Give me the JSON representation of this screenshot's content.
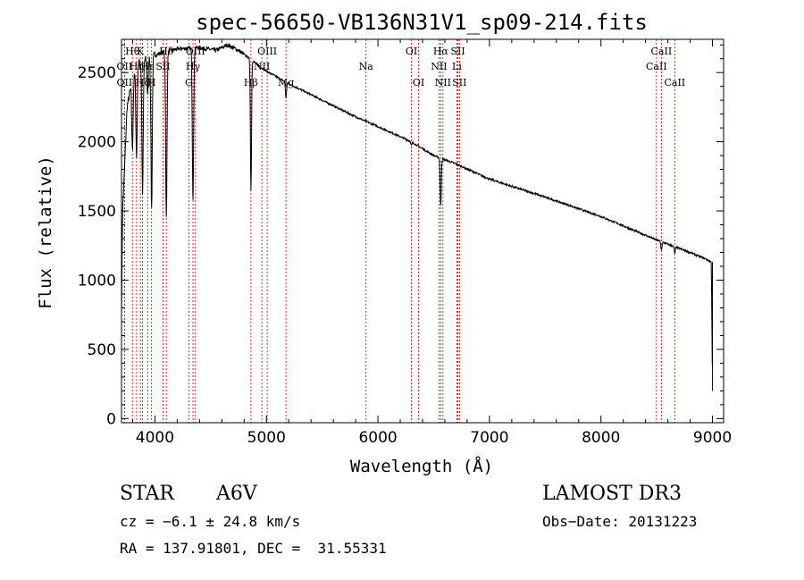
{
  "chart_data": {
    "type": "line",
    "title": "spec-56650-VB136N31V1_sp09-214.fits",
    "xlabel": "Wavelength (Å)",
    "ylabel": "Flux (relative)",
    "xlim": [
      3700,
      9100
    ],
    "ylim": [
      -30,
      2740
    ],
    "xticks": [
      4000,
      5000,
      6000,
      7000,
      8000,
      9000
    ],
    "yticks": [
      0,
      500,
      1000,
      1500,
      2000,
      2500
    ],
    "xtick_labels": [
      "4000",
      "5000",
      "6000",
      "7000",
      "8000",
      "9000"
    ],
    "ytick_labels": [
      "0",
      "500",
      "1000",
      "1500",
      "2000",
      "2500"
    ],
    "series": [
      {
        "name": "flux",
        "continuum_points": [
          [
            3700,
            750
          ],
          [
            3710,
            1500
          ],
          [
            3730,
            1850
          ],
          [
            3750,
            2250
          ],
          [
            3790,
            2420
          ],
          [
            3850,
            2570
          ],
          [
            3950,
            2610
          ],
          [
            4050,
            2640
          ],
          [
            4200,
            2670
          ],
          [
            4400,
            2680
          ],
          [
            4550,
            2660
          ],
          [
            4650,
            2700
          ],
          [
            4750,
            2660
          ],
          [
            4850,
            2600
          ],
          [
            5000,
            2510
          ],
          [
            5200,
            2420
          ],
          [
            5500,
            2300
          ],
          [
            5800,
            2180
          ],
          [
            6000,
            2110
          ],
          [
            6300,
            2000
          ],
          [
            6500,
            1900
          ],
          [
            6700,
            1840
          ],
          [
            7000,
            1730
          ],
          [
            7500,
            1600
          ],
          [
            8000,
            1460
          ],
          [
            8500,
            1290
          ],
          [
            8800,
            1200
          ],
          [
            8950,
            1150
          ],
          [
            8990,
            1130
          ],
          [
            9000,
            200
          ]
        ],
        "absorption_lines": [
          [
            3798,
            500
          ],
          [
            3835,
            650
          ],
          [
            3889,
            950
          ],
          [
            3934,
            250
          ],
          [
            3970,
            1100
          ],
          [
            4102,
            1200
          ],
          [
            4341,
            1100
          ],
          [
            4861,
            950
          ],
          [
            5175,
            120
          ],
          [
            6300,
            30
          ],
          [
            6563,
            350
          ],
          [
            8542,
            60
          ],
          [
            8662,
            50
          ]
        ]
      }
    ],
    "line_markers": [
      {
        "wavelength": 3727,
        "label": "OII",
        "row": 1
      },
      {
        "wavelength": 3727,
        "label": "OII",
        "row": 2
      },
      {
        "wavelength": 3798,
        "label": "Hθ",
        "row": 0
      },
      {
        "wavelength": 3835,
        "label": "Hη",
        "row": 1
      },
      {
        "wavelength": 3869,
        "label": "K",
        "row": 0
      },
      {
        "wavelength": 3889,
        "label": "Hζ",
        "row": 2
      },
      {
        "wavelength": 3934,
        "label": "Hε",
        "row": 1
      },
      {
        "wavelength": 3970,
        "label": "H",
        "row": 2
      },
      {
        "wavelength": 4072,
        "label": "SII",
        "row": 1
      },
      {
        "wavelength": 4102,
        "label": "Hδ",
        "row": 0
      },
      {
        "wavelength": 4304,
        "label": "G",
        "row": 2
      },
      {
        "wavelength": 4341,
        "label": "Hγ",
        "row": 1
      },
      {
        "wavelength": 4363,
        "label": "OIII",
        "row": 0
      },
      {
        "wavelength": 4861,
        "label": "Hβ",
        "row": 2
      },
      {
        "wavelength": 4959,
        "label": "NII",
        "row": 1
      },
      {
        "wavelength": 5007,
        "label": "OIII",
        "row": 0
      },
      {
        "wavelength": 5175,
        "label": "Mg",
        "row": 2
      },
      {
        "wavelength": 5893,
        "label": "Na",
        "row": 1
      },
      {
        "wavelength": 6300,
        "label": "OI",
        "row": 0
      },
      {
        "wavelength": 6364,
        "label": "OI",
        "row": 2
      },
      {
        "wavelength": 6548,
        "label": "NII",
        "row": 1
      },
      {
        "wavelength": 6563,
        "label": "Hα",
        "row": 0
      },
      {
        "wavelength": 6583,
        "label": "NII",
        "row": 2
      },
      {
        "wavelength": 6708,
        "label": "Li",
        "row": 1
      },
      {
        "wavelength": 6717,
        "label": "SII",
        "row": 0
      },
      {
        "wavelength": 6731,
        "label": "SII",
        "row": 2
      },
      {
        "wavelength": 8498,
        "label": "CaII",
        "row": 1
      },
      {
        "wavelength": 8542,
        "label": "CaII",
        "row": 0
      },
      {
        "wavelength": 8662,
        "label": "CaII",
        "row": 2
      }
    ],
    "colors": {
      "line": "#000000",
      "markers": "#cc0000",
      "frame": "#000000"
    },
    "grid": false
  },
  "footer": {
    "class_label": "STAR",
    "subclass": "A6V",
    "survey": "LAMOST DR3",
    "cz": "cz = −6.1 ± 24.8 km/s",
    "obs_date": "Obs−Date: 20131223",
    "coords": "RA = 137.91801, DEC =  31.55331"
  }
}
